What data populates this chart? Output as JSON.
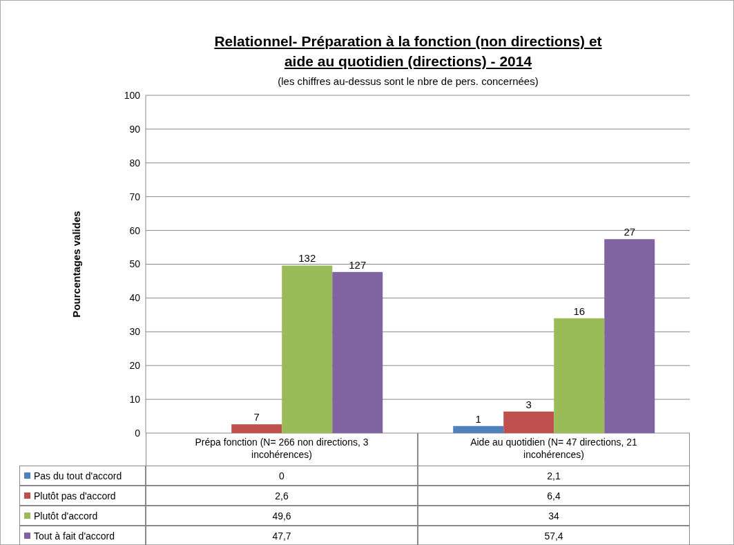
{
  "chart_data": {
    "type": "bar",
    "title": "Relationnel- Préparation à la fonction (non directions) et aide au quotidien (directions) - 2014",
    "subtitle": "(les chiffres au-dessus sont le nbre de pers. concernées)",
    "ylabel": "Pourcentages valides",
    "categories": [
      "Prépa fonction (N= 266 non directions, 3 incohérences)",
      "Aide au quotidien (N= 47 directions, 21 incohérences)"
    ],
    "series": [
      {
        "name": "Pas du tout d'accord",
        "color": "#4f81bd",
        "values": [
          0,
          2.1
        ],
        "value_labels": [
          "0",
          "2,1"
        ]
      },
      {
        "name": "Plutôt pas d'accord",
        "color": "#c0504d",
        "values": [
          2.6,
          6.4
        ],
        "value_labels": [
          "2,6",
          "6,4"
        ]
      },
      {
        "name": "Plutôt d'accord",
        "color": "#9bbb59",
        "values": [
          49.6,
          34
        ],
        "value_labels": [
          "49,6",
          "34"
        ]
      },
      {
        "name": "Tout à fait d'accord",
        "color": "#8064a2",
        "values": [
          47.7,
          57.4
        ],
        "value_labels": [
          "47,7",
          "57,4"
        ]
      }
    ],
    "annotations": [
      "1",
      {
        "text": "7",
        "x": "Prépa fonction (N= 266 non directions, 3 incohérences)",
        "y": 2.6
      },
      {
        "text": "3",
        "x": "Aide au quotidien (N= 47 directions, 21 incohérences)",
        "y": 6.4
      },
      {
        "text": "132",
        "x": "Prépa fonction (N= 266 non directions, 3 incohérences)",
        "y": 49.6
      },
      {
        "text": "16",
        "x": "Aide au quotidien (N= 47 directions, 21 incohérences)",
        "y": 34
      },
      "127",
      "27"
    ],
    "ylim": [
      0,
      100
    ],
    "yticks": [
      0,
      10,
      20,
      30,
      40,
      50,
      60,
      70,
      80,
      90,
      100
    ],
    "grid": "y",
    "legend": "bottom"
  }
}
